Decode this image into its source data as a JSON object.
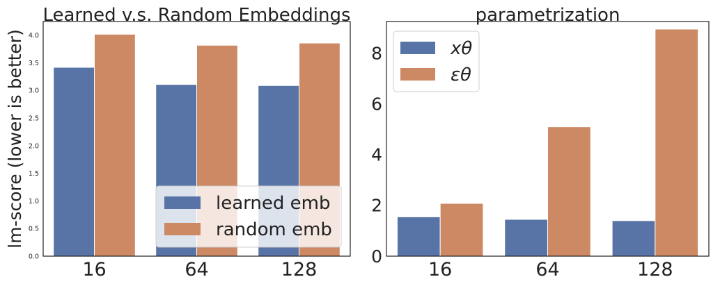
{
  "chart_data": [
    {
      "type": "bar",
      "title": "Learned v.s. Random Embeddings",
      "xlabel": "",
      "ylabel": "lm-score (lower is better)",
      "categories": [
        "16",
        "64",
        "128"
      ],
      "ylim": [
        0,
        4.25
      ],
      "yticks": [
        "0.0",
        "0.5",
        "1.0",
        "1.5",
        "2.0",
        "2.5",
        "3.0",
        "3.5",
        "4.0"
      ],
      "grid": false,
      "legend_position": "bottom-right",
      "series": [
        {
          "name": "learned emb",
          "values": [
            3.42,
            3.11,
            3.09
          ],
          "color": "#5874a6"
        },
        {
          "name": "random emb",
          "values": [
            4.02,
            3.82,
            3.86
          ],
          "color": "#cd8963"
        }
      ]
    },
    {
      "type": "bar",
      "title": "parametrization",
      "xlabel": "",
      "ylabel": "",
      "categories": [
        "16",
        "64",
        "128"
      ],
      "ylim": [
        0,
        9.25
      ],
      "yticks": [
        "0",
        "2",
        "4",
        "6",
        "8"
      ],
      "grid": false,
      "legend_position": "top-left",
      "series": [
        {
          "name": "xθ",
          "values": [
            1.55,
            1.45,
            1.4
          ],
          "color": "#5874a6"
        },
        {
          "name": "εθ",
          "values": [
            2.08,
            5.1,
            8.95
          ],
          "color": "#cd8963"
        }
      ]
    }
  ]
}
